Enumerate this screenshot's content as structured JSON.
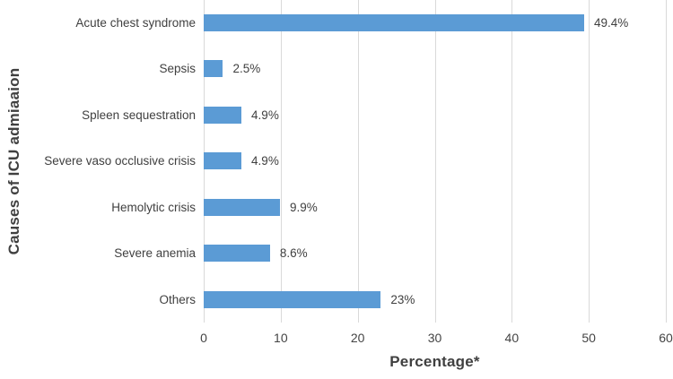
{
  "chart_data": {
    "type": "bar",
    "orientation": "horizontal",
    "title": "",
    "categories": [
      "Acute chest syndrome",
      "Sepsis",
      "Spleen sequestration",
      "Severe vaso occlusive crisis",
      "Hemolytic crisis",
      "Severe anemia",
      "Others"
    ],
    "values": [
      49.4,
      2.5,
      4.9,
      4.9,
      9.9,
      8.6,
      23
    ],
    "data_labels": [
      "49.4%",
      "2.5%",
      "4.9%",
      "4.9%",
      "9.9%",
      "8.6%",
      "23%"
    ],
    "xlabel": "Percentage*",
    "ylabel": "Causes of ICU admiaaion",
    "xlim": [
      0,
      60
    ],
    "x_ticks": [
      0,
      10,
      20,
      30,
      40,
      50,
      60
    ],
    "grid": "vertical-major-gridlines",
    "legend": "none",
    "bar_color": "#5b9bd5",
    "gridline_color": "#d9d9d9",
    "label_color": "#3f3f3f",
    "axis_title_color": "#404040"
  }
}
